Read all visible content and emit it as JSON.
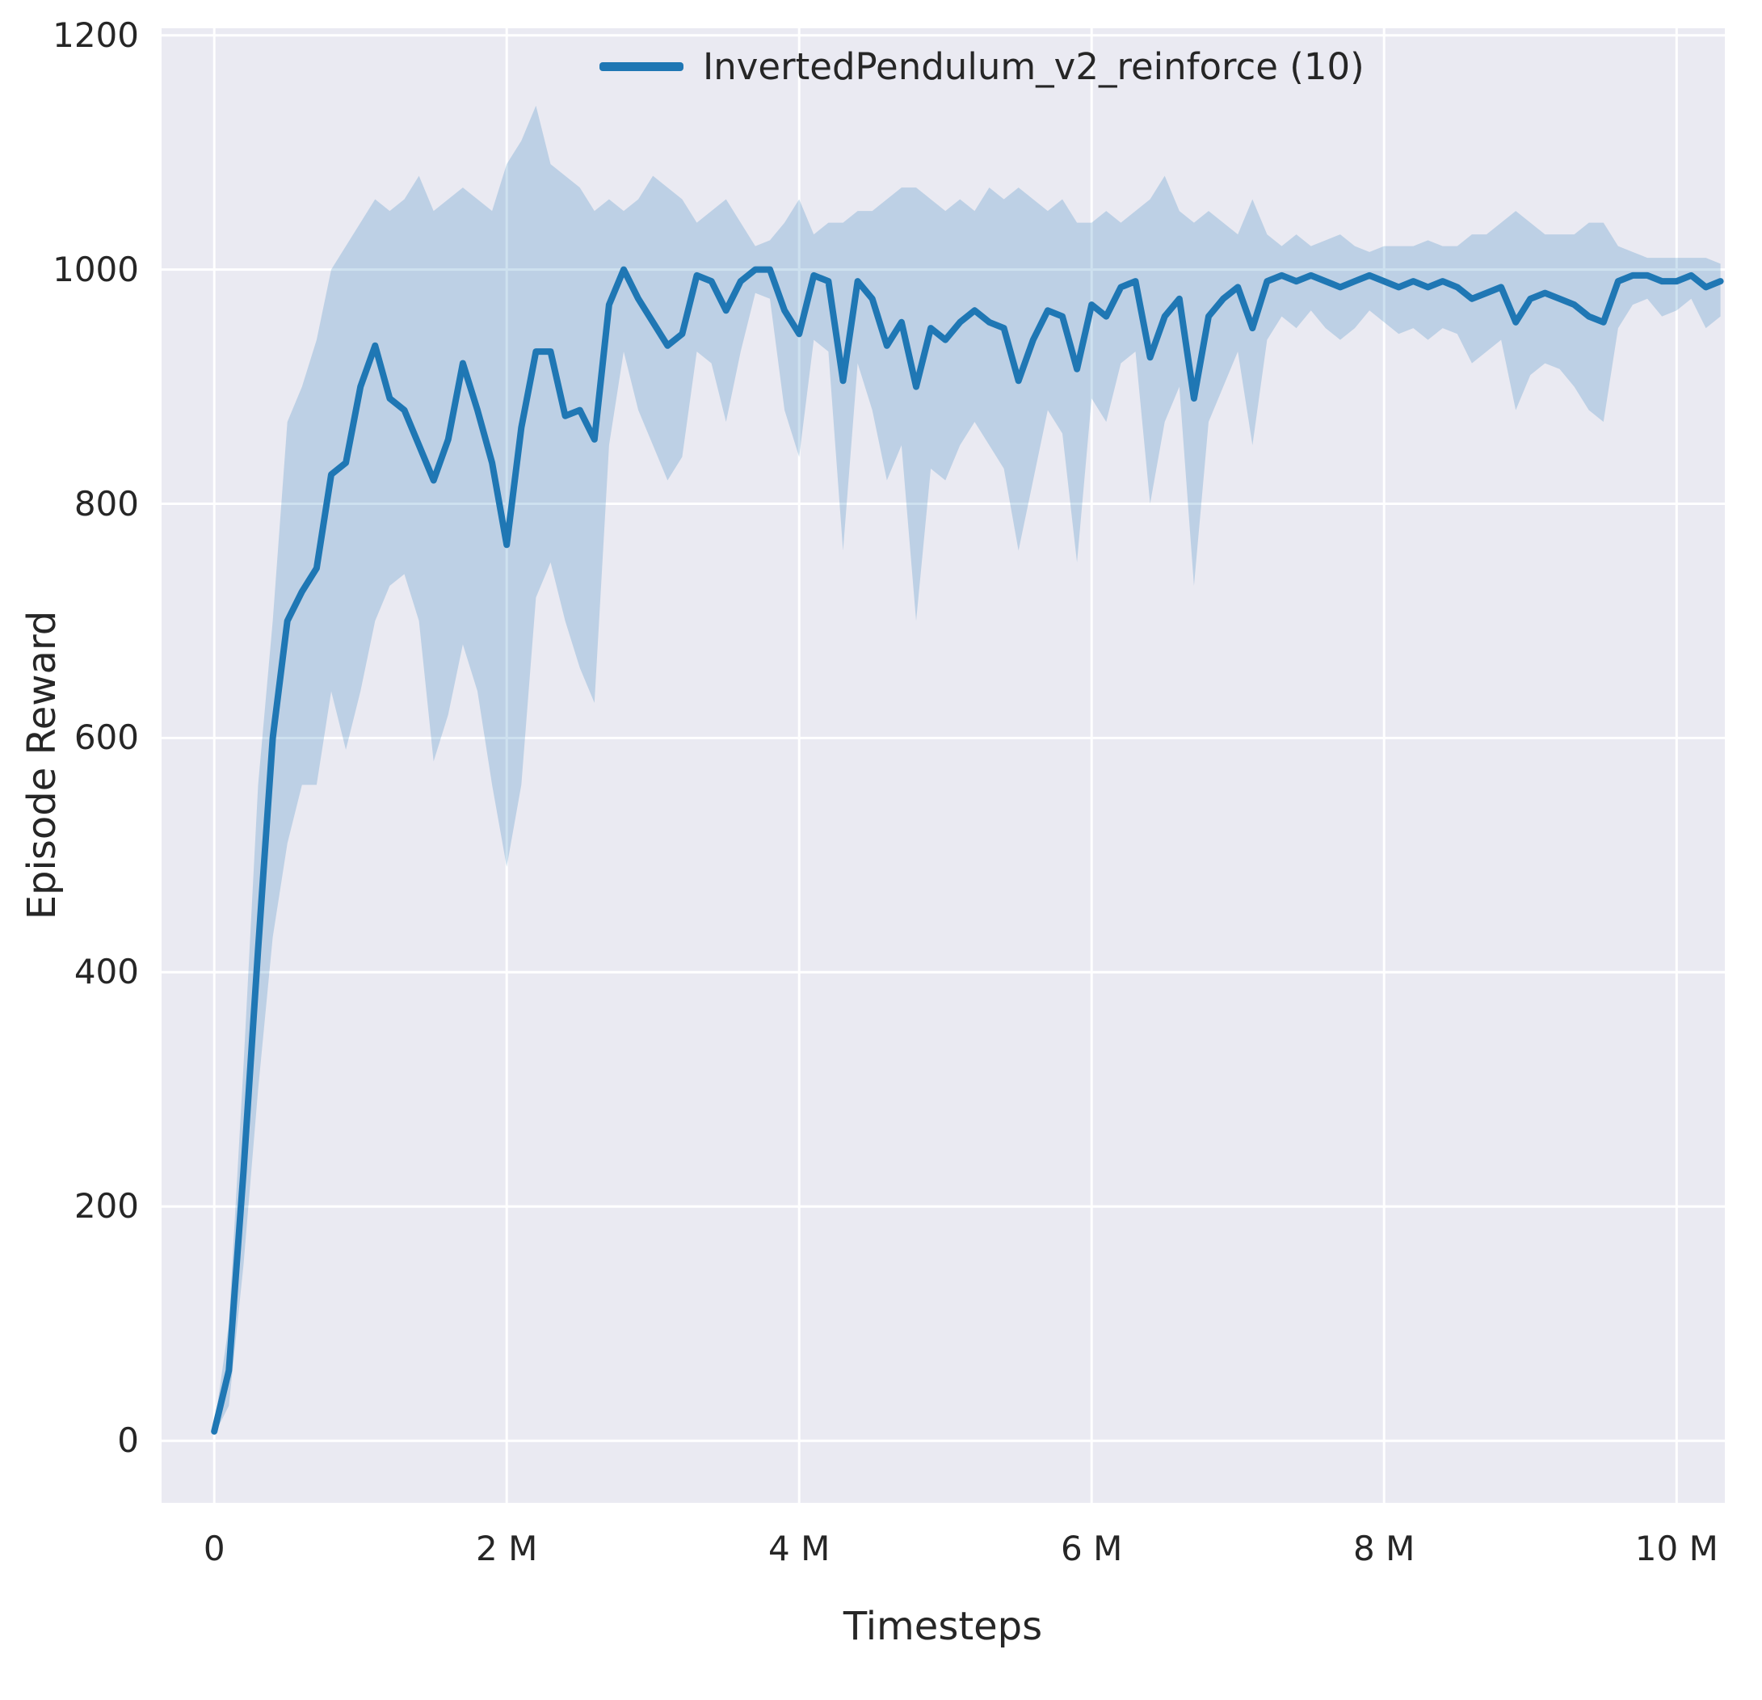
{
  "chart_data": {
    "type": "line",
    "title": "",
    "xlabel": "Timesteps",
    "ylabel": "Episode Reward",
    "xlim": [
      -0.36,
      10.33
    ],
    "ylim": [
      -53,
      1206
    ],
    "grid": true,
    "legend_position": "upper right",
    "xticks": {
      "values": [
        0,
        2,
        4,
        6,
        8,
        10
      ],
      "labels": [
        "0",
        "2 M",
        "4 M",
        "6 M",
        "8 M",
        "10 M"
      ]
    },
    "yticks": {
      "values": [
        0,
        200,
        400,
        600,
        800,
        1000,
        1200
      ],
      "labels": [
        "0",
        "200",
        "400",
        "600",
        "800",
        "1000",
        "1200"
      ]
    },
    "colors": {
      "line": "#1f77b4",
      "band": "rgba(31,119,180,0.22)",
      "plot_background": "#eaeaf2",
      "grid": "#ffffff",
      "text": "#262626"
    },
    "series": [
      {
        "name": "InvertedPendulum_v2_reinforce (10)",
        "x_unit": "M",
        "x": [
          0,
          0.1,
          0.2,
          0.3,
          0.4,
          0.5,
          0.6,
          0.7,
          0.8,
          0.9,
          1,
          1.1,
          1.2,
          1.3,
          1.4,
          1.5,
          1.6,
          1.7,
          1.8,
          1.9,
          2,
          2.1,
          2.2,
          2.3,
          2.4,
          2.5,
          2.6,
          2.7,
          2.8,
          2.9,
          3,
          3.1,
          3.2,
          3.3,
          3.4,
          3.5,
          3.6,
          3.7,
          3.8,
          3.9,
          4,
          4.1,
          4.2,
          4.3,
          4.4,
          4.5,
          4.6,
          4.7,
          4.8,
          4.9,
          5,
          5.1,
          5.2,
          5.3,
          5.4,
          5.5,
          5.6,
          5.7,
          5.8,
          5.9,
          6,
          6.1,
          6.2,
          6.3,
          6.4,
          6.5,
          6.6,
          6.7,
          6.8,
          6.9,
          7,
          7.1,
          7.2,
          7.3,
          7.4,
          7.5,
          7.6,
          7.7,
          7.8,
          7.9,
          8,
          8.1,
          8.2,
          8.3,
          8.4,
          8.5,
          8.6,
          8.7,
          8.8,
          8.9,
          9,
          9.1,
          9.2,
          9.3,
          9.4,
          9.5,
          9.6,
          9.7,
          9.8,
          9.9,
          10,
          10.1,
          10.2,
          10.3
        ],
        "mean": [
          8,
          60,
          230,
          420,
          600,
          700,
          725,
          745,
          825,
          835,
          900,
          935,
          890,
          880,
          850,
          820,
          855,
          920,
          880,
          835,
          765,
          865,
          930,
          930,
          875,
          880,
          855,
          970,
          1000,
          975,
          955,
          935,
          945,
          995,
          990,
          965,
          990,
          1000,
          1000,
          965,
          945,
          995,
          990,
          905,
          990,
          975,
          935,
          955,
          900,
          950,
          940,
          955,
          965,
          955,
          950,
          905,
          940,
          965,
          960,
          915,
          970,
          960,
          985,
          990,
          925,
          960,
          975,
          890,
          960,
          975,
          985,
          950,
          990,
          995,
          990,
          995,
          990,
          985,
          990,
          995,
          990,
          985,
          990,
          985,
          990,
          985,
          975,
          980,
          985,
          955,
          975,
          980,
          975,
          970,
          960,
          955,
          990,
          995,
          995,
          990,
          990,
          995,
          985,
          990
        ],
        "band_low": [
          5,
          30,
          150,
          300,
          430,
          510,
          560,
          560,
          640,
          590,
          640,
          700,
          730,
          740,
          700,
          580,
          620,
          680,
          640,
          560,
          490,
          560,
          720,
          750,
          700,
          660,
          630,
          850,
          930,
          880,
          850,
          820,
          840,
          930,
          920,
          870,
          930,
          980,
          975,
          880,
          840,
          940,
          930,
          760,
          920,
          880,
          820,
          850,
          700,
          830,
          820,
          850,
          870,
          850,
          830,
          760,
          820,
          880,
          860,
          750,
          890,
          870,
          920,
          930,
          800,
          870,
          900,
          730,
          870,
          900,
          930,
          850,
          940,
          960,
          950,
          965,
          950,
          940,
          950,
          965,
          955,
          945,
          950,
          940,
          950,
          945,
          920,
          930,
          940,
          880,
          910,
          920,
          915,
          900,
          880,
          870,
          950,
          970,
          975,
          960,
          965,
          975,
          950,
          960
        ],
        "band_high": [
          12,
          100,
          320,
          560,
          700,
          870,
          900,
          940,
          1000,
          1020,
          1040,
          1060,
          1050,
          1060,
          1080,
          1050,
          1060,
          1070,
          1060,
          1050,
          1090,
          1110,
          1140,
          1090,
          1080,
          1070,
          1050,
          1060,
          1050,
          1060,
          1080,
          1070,
          1060,
          1040,
          1050,
          1060,
          1040,
          1020,
          1025,
          1040,
          1060,
          1030,
          1040,
          1040,
          1050,
          1050,
          1060,
          1070,
          1070,
          1060,
          1050,
          1060,
          1050,
          1070,
          1060,
          1070,
          1060,
          1050,
          1060,
          1040,
          1040,
          1050,
          1040,
          1050,
          1060,
          1080,
          1050,
          1040,
          1050,
          1040,
          1030,
          1060,
          1030,
          1020,
          1030,
          1020,
          1025,
          1030,
          1020,
          1015,
          1020,
          1020,
          1020,
          1025,
          1020,
          1020,
          1030,
          1030,
          1040,
          1050,
          1040,
          1030,
          1030,
          1030,
          1040,
          1040,
          1020,
          1015,
          1010,
          1010,
          1010,
          1010,
          1010,
          1005
        ]
      }
    ]
  }
}
